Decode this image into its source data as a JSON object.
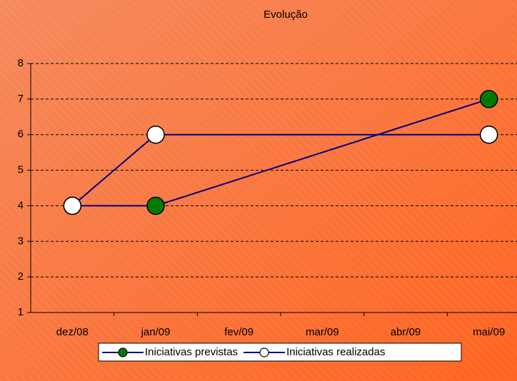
{
  "chart_data": {
    "type": "line",
    "title": "Evolução",
    "categories": [
      "dez/08",
      "jan/09",
      "fev/09",
      "mar/09",
      "abr/09",
      "mai/09"
    ],
    "series": [
      {
        "name": "Iniciativas previstas",
        "color": "#000080",
        "marker_color": "#007a00",
        "values": [
          4,
          4,
          null,
          null,
          null,
          7
        ]
      },
      {
        "name": "Iniciativas realizadas",
        "color": "#000080",
        "marker_color": "#ffffff",
        "values": [
          4,
          6,
          null,
          null,
          null,
          6
        ]
      }
    ],
    "ylim": [
      1,
      8
    ],
    "yticks": [
      1,
      2,
      3,
      4,
      5,
      6,
      7,
      8
    ],
    "grid": true,
    "connect_gaps": true,
    "legend": "bottom"
  }
}
